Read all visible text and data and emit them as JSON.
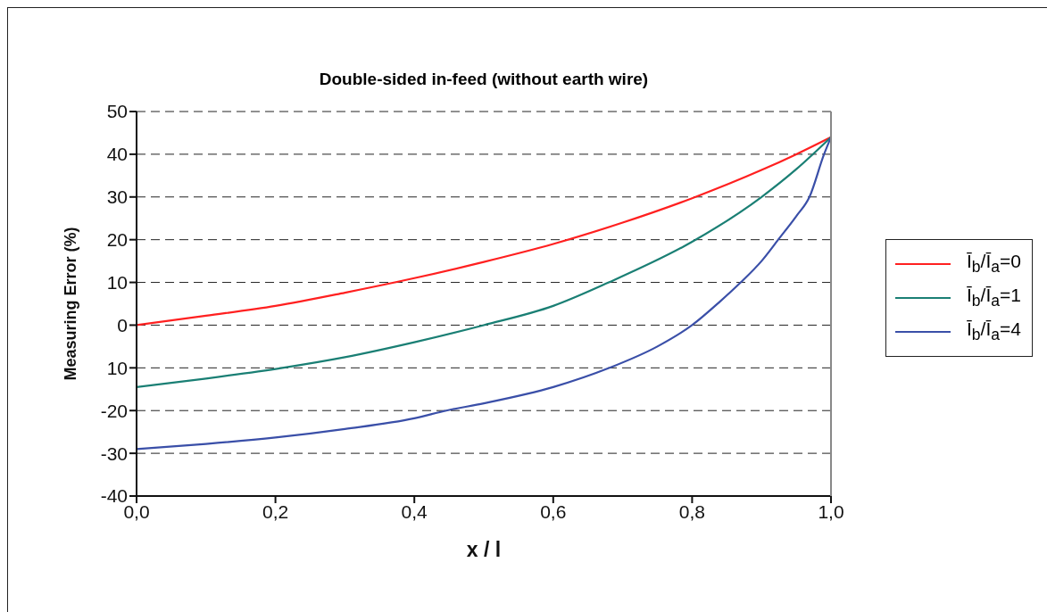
{
  "chart_data": {
    "type": "line",
    "title": "Double-sided in-feed (without earth wire)",
    "xlabel": "x / l",
    "ylabel": "Measuring Error (%)",
    "xlim": [
      0,
      1
    ],
    "xticks": [
      {
        "value": 0,
        "label": "0,0"
      },
      {
        "value": 0.2,
        "label": "0,2"
      },
      {
        "value": 0.4,
        "label": "0,4"
      },
      {
        "value": 0.6,
        "label": "0,6"
      },
      {
        "value": 0.8,
        "label": "0,8"
      },
      {
        "value": 1,
        "label": "1,0"
      }
    ],
    "ylim": [
      -40,
      50
    ],
    "yticks": [
      -40,
      -30,
      -20,
      {
        "value": -10,
        "label": "10"
      },
      0,
      10,
      20,
      30,
      40,
      50
    ],
    "grid": "y",
    "legend": "right",
    "marker": "none",
    "line_style": "solid",
    "series": [
      {
        "name": "Ī$_{b}$/Ī$_{a}$=0",
        "color": "#ff2020",
        "x": [
          0,
          0.1,
          0.2,
          0.3,
          0.4,
          0.5,
          0.6,
          0.7,
          0.8,
          0.9,
          0.95,
          1
        ],
        "values": [
          0,
          2.2,
          4.5,
          7.6,
          11,
          14.8,
          19,
          24,
          29.7,
          36.3,
          40,
          44
        ]
      },
      {
        "name": "Ī$_{b}$/Ī$_{a}$=1",
        "color": "#1a7f74",
        "x": [
          0,
          0.1,
          0.21,
          0.3,
          0.4,
          0.5,
          0.6,
          0.68,
          0.8,
          0.9,
          0.95,
          1
        ],
        "values": [
          -14.5,
          -12.5,
          -10,
          -7.5,
          -4,
          0,
          4.5,
          10,
          19.5,
          30,
          36.5,
          44
        ]
      },
      {
        "name": "Ī$_{b}$/Ī$_{a}$=4",
        "color": "#3a4fa8",
        "x": [
          0,
          0.1,
          0.2,
          0.3,
          0.4,
          0.446,
          0.5,
          0.6,
          0.681,
          0.75,
          0.8,
          0.84,
          0.87,
          0.9,
          0.924,
          0.95,
          0.969,
          0.99,
          1
        ],
        "values": [
          -29,
          -27.8,
          -26.3,
          -24.3,
          -21.8,
          -20,
          -18.3,
          -14.5,
          -10,
          -5,
          0,
          5.5,
          10,
          15,
          20,
          25.5,
          30,
          40,
          44
        ]
      }
    ]
  }
}
